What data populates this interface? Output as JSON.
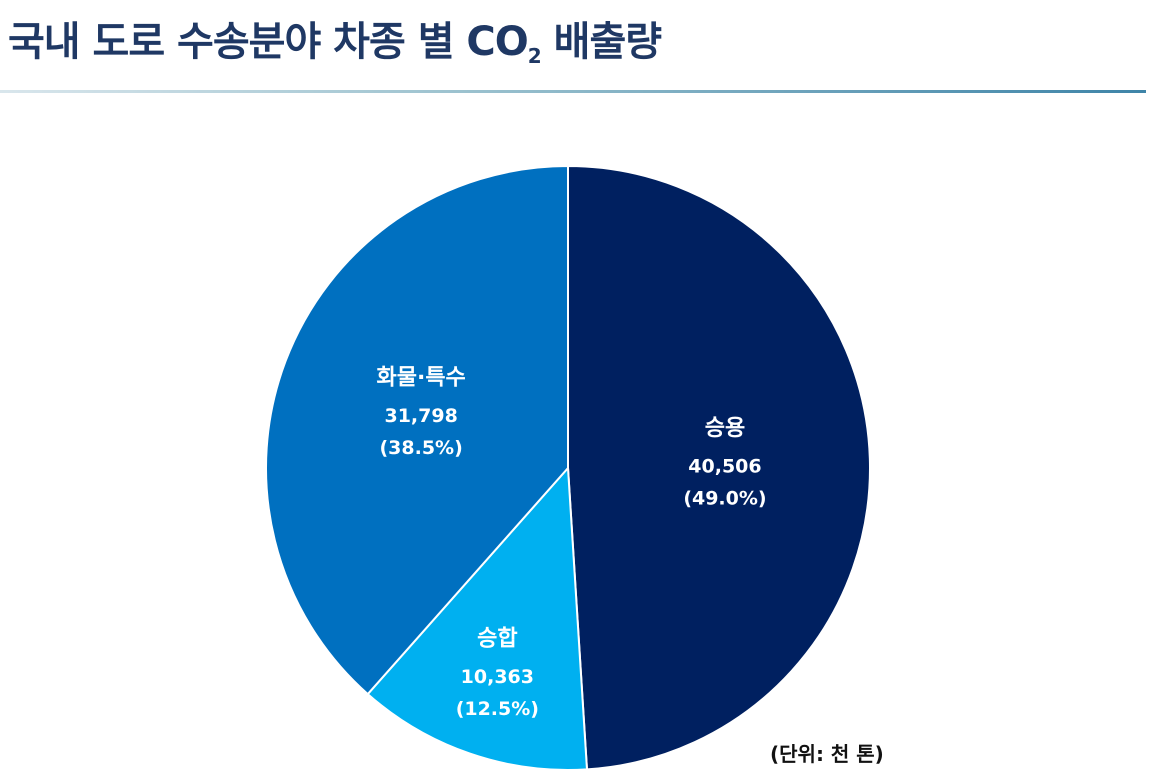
{
  "title": {
    "main": "국내 도로 수송분야  차종 별 CO",
    "subscript": "2",
    "suffix": " 배출량"
  },
  "unit_note": "(단위: 천 톤)",
  "chart_data": {
    "type": "pie",
    "title": "국내 도로 수송분야 차종 별 CO2 배출량",
    "unit": "천 톤",
    "start_angle_deg": 0,
    "direction": "clockwise",
    "slices": [
      {
        "label": "승용",
        "value": 40506,
        "value_label": "40,506",
        "percent_label": "(49.0%)",
        "percent": 49.0,
        "color": "#002060"
      },
      {
        "label": "승합",
        "value": 10363,
        "value_label": "10,363",
        "percent_label": "(12.5%)",
        "percent": 12.5,
        "color": "#00b0f0"
      },
      {
        "label": "화물·특수",
        "value": 31798,
        "value_label": "31,798",
        "percent_label": "(38.5%)",
        "percent": 38.5,
        "color": "#0070c0"
      }
    ],
    "legend": "none"
  }
}
